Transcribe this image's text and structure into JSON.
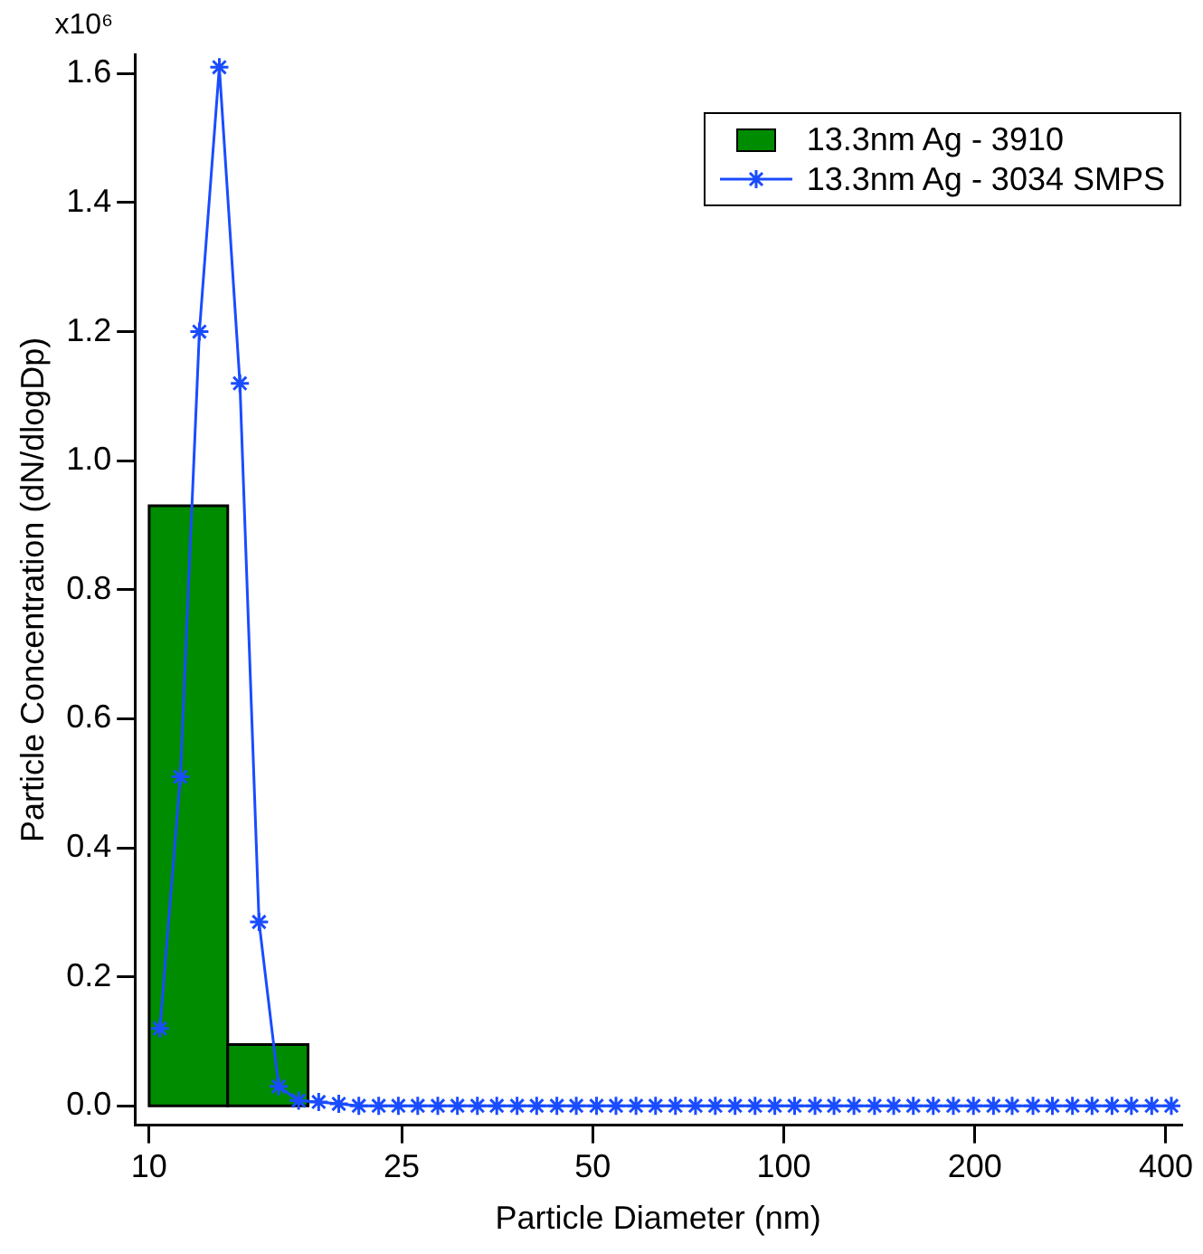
{
  "chart_data": {
    "type": "histogram",
    "xlabel": "Particle Diameter (nm)",
    "ylabel": "Particle Concentration (dN/dlogDp)",
    "log": "x",
    "grid": false,
    "legend": "top right",
    "xlim": [
      9.5,
      423
    ],
    "xticks": [
      10,
      25,
      50,
      100,
      200,
      400
    ],
    "ylim": [
      -0.03,
      1.63
    ],
    "yticks": [
      {
        "value": 0,
        "label": "0.0"
      },
      {
        "value": 0.2,
        "label": "0.2"
      },
      {
        "value": 0.4,
        "label": "0.4"
      },
      {
        "value": 0.6,
        "label": "0.6"
      },
      {
        "value": 0.8,
        "label": "0.8"
      },
      {
        "value": 1,
        "label": "1.0"
      },
      {
        "value": 1.2,
        "label": "1.2"
      },
      {
        "value": 1.4,
        "label": "1.4"
      },
      {
        "value": 1.6,
        "label": "1.6"
      }
    ],
    "annotations": [
      "x10⁶"
    ],
    "series": [
      {
        "name": "13.3nm Ag - 3910",
        "color": "#008c00",
        "bins": [
          10,
          13.3,
          17.8
        ],
        "values": [
          0.93,
          0.095
        ]
      },
      {
        "name": "13.3nm Ag - 3034 SMPS",
        "type": "line",
        "color": "#1a4cff",
        "marker": "cross",
        "x": [
          10.4,
          11.2,
          12.0,
          12.9,
          13.9,
          14.9,
          16.0,
          17.2,
          18.5,
          19.9,
          21.4,
          23.0,
          24.7,
          26.5,
          28.5,
          30.6,
          32.9,
          35.3,
          38.0,
          40.8,
          43.9,
          47.1,
          50.7,
          54.4,
          58.5,
          62.8,
          67.5,
          72.6,
          78.0,
          83.8,
          90.1,
          96.8,
          104,
          112,
          120,
          129,
          139,
          149,
          160,
          172,
          185,
          199,
          214,
          229,
          247,
          265,
          285,
          306,
          329,
          353,
          380,
          408
        ],
        "values": [
          0.12,
          0.51,
          1.2,
          1.61,
          1.12,
          0.285,
          0.03,
          0.008,
          0.006,
          0.003,
          0,
          0,
          0,
          0,
          0,
          0,
          0,
          0,
          0,
          0,
          0,
          0,
          0,
          0,
          0,
          0,
          0,
          0,
          0,
          0,
          0,
          0,
          0,
          0,
          0,
          0,
          0,
          0,
          0,
          0,
          0,
          0,
          0,
          0,
          0,
          0,
          0,
          0,
          0,
          0,
          0,
          0
        ]
      }
    ]
  }
}
